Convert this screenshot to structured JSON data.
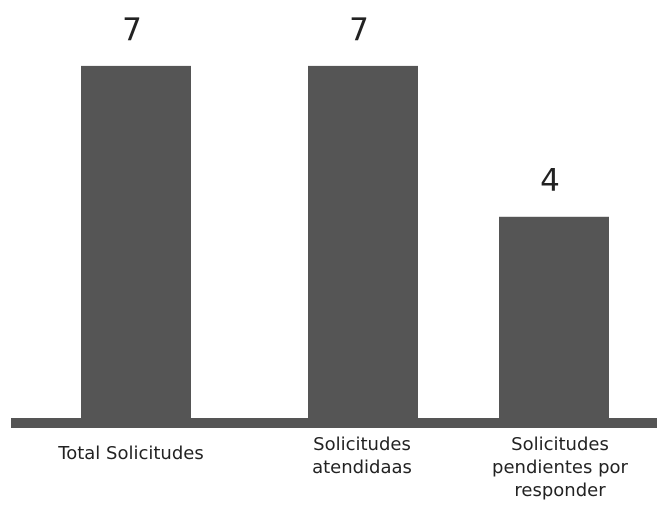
{
  "chart_data": {
    "type": "bar",
    "categories": [
      [
        "Total Solicitudes"
      ],
      [
        "Solicitudes",
        "atendidaas"
      ],
      [
        "Solicitudes",
        "pendientes por",
        "responder"
      ]
    ],
    "values": [
      7,
      7,
      4
    ],
    "data_labels": [
      "7",
      "7",
      "4"
    ],
    "ylim": [
      0,
      8
    ],
    "grid": false,
    "legend": "none",
    "colors": {
      "bar": "#555555",
      "baseline": "#555555",
      "text": "#222222"
    }
  }
}
